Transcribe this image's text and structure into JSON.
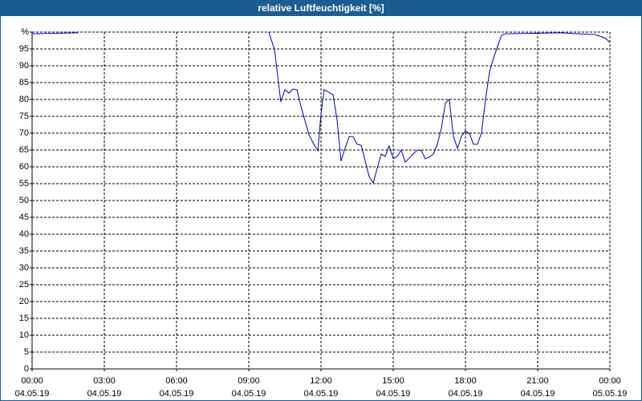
{
  "chart_data": {
    "type": "line",
    "title": "relative Luftfeuchtigkeit [%]",
    "x": [
      0,
      1.9,
      2.5,
      9.83,
      10.07,
      10.33,
      10.5,
      10.67,
      10.83,
      11.0,
      11.17,
      11.33,
      11.5,
      11.7,
      11.87,
      12.0,
      12.13,
      12.33,
      12.5,
      12.67,
      12.83,
      13.0,
      13.17,
      13.33,
      13.5,
      13.67,
      13.83,
      14.0,
      14.17,
      14.33,
      14.5,
      14.67,
      14.83,
      15.0,
      15.17,
      15.33,
      15.5,
      15.67,
      15.83,
      16.0,
      16.17,
      16.33,
      16.5,
      16.67,
      16.83,
      17.0,
      17.17,
      17.33,
      17.5,
      17.67,
      17.83,
      18.0,
      18.17,
      18.33,
      18.5,
      18.67,
      18.83,
      19.0,
      19.17,
      19.33,
      19.5,
      19.67,
      22.0,
      22.67,
      23.33,
      23.67,
      23.83,
      24.0
    ],
    "series": [
      {
        "color": "#0000b0",
        "values": [
          99.5,
          99.8,
          null,
          100,
          94.8,
          79.3,
          82.9,
          81.9,
          83.1,
          82.9,
          77.9,
          73.8,
          69.5,
          66.7,
          64.8,
          75.7,
          82.9,
          82.1,
          81.4,
          73.8,
          61.7,
          65.5,
          69.0,
          69.0,
          66.7,
          66.4,
          61.9,
          57.1,
          55.2,
          59.5,
          63.8,
          63.1,
          66.2,
          62.4,
          63.1,
          65.0,
          61.4,
          62.6,
          63.8,
          65.0,
          64.8,
          62.4,
          62.9,
          63.8,
          66.7,
          71.4,
          79.0,
          80.0,
          69.0,
          65.5,
          69.0,
          70.7,
          69.8,
          66.7,
          66.7,
          70.2,
          79.8,
          88.1,
          92.4,
          95.7,
          99.0,
          99.5,
          99.8,
          99.5,
          99.3,
          98.6,
          98.1,
          96.9
        ]
      }
    ],
    "xlim": [
      0,
      24
    ],
    "xticks": [
      {
        "value": 0,
        "label": "00:00"
      },
      {
        "value": 3,
        "label": "03:00"
      },
      {
        "value": 6,
        "label": "06:00"
      },
      {
        "value": 9,
        "label": "09:00"
      },
      {
        "value": 12,
        "label": "12:00"
      },
      {
        "value": 15,
        "label": "15:00"
      },
      {
        "value": 18,
        "label": "18:00"
      },
      {
        "value": 21,
        "label": "21:00"
      },
      {
        "value": 24,
        "label": "00:00"
      }
    ],
    "xtick_dates": [
      "04.05.19",
      "04.05.19",
      "04.05.19",
      "04.05.19",
      "04.05.19",
      "04.05.19",
      "04.05.19",
      "04.05.19",
      "05.05.19"
    ],
    "ylim": [
      0,
      100
    ],
    "yticks": [
      0,
      5,
      10,
      15,
      20,
      25,
      30,
      35,
      40,
      45,
      50,
      55,
      60,
      65,
      70,
      75,
      80,
      85,
      90,
      95,
      {
        "value": 100,
        "label": "%"
      }
    ],
    "grid": true
  }
}
